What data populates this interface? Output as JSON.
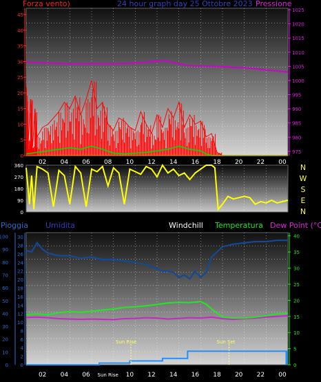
{
  "header": {
    "left_label": "Forza vento)",
    "title": "24 hour graph day 25 Ottobre 2023",
    "right_label": "Pressione"
  },
  "bottom_header": {
    "pioggia": "Pioggia",
    "umidita": "Umidita",
    "windchill": "Windchill",
    "temperatura": "Temperatura",
    "dewpoint": "Dew Point (°C)"
  },
  "events": {
    "sunrise": "Sun Rise",
    "sunset": "Sun Set"
  },
  "colors": {
    "wind": "#ff0000",
    "gust": "#00dd00",
    "pressure": "#d000d0",
    "direction": "#ffff00",
    "humidity": "#124a96",
    "temperature": "#22e822",
    "dewpoint": "#cc22cc",
    "rain": "#1e90ff",
    "sun_marker": "#ffff80",
    "text_blue": "#2a6fd0",
    "text_blue_dark": "#3040c0"
  },
  "chart_data": [
    {
      "type": "line",
      "name": "wind-pressure",
      "x_ticks": [
        "02",
        "04",
        "06",
        "08",
        "10",
        "12",
        "14",
        "16",
        "18",
        "20",
        "22",
        "00"
      ],
      "y_left_ticks": [
        "0",
        "5",
        "10",
        "15",
        "20",
        "25",
        "30",
        "35",
        "40",
        "45"
      ],
      "y_left_range": [
        0,
        47
      ],
      "y_right_ticks": [
        "975",
        "980",
        "985",
        "990",
        "995",
        "1000",
        "1005",
        "1010",
        "1015",
        "1020",
        "1025"
      ],
      "y_right_range": [
        973.5,
        1025.5
      ],
      "x_range": [
        0,
        24
      ],
      "grid": true,
      "series": [
        {
          "key": "pressure",
          "x": [
            0,
            2,
            4,
            6,
            8,
            10,
            12,
            12.5,
            13,
            13.5,
            14,
            15,
            16,
            17,
            18,
            19,
            20,
            21,
            22,
            23,
            24
          ],
          "y": [
            1006.5,
            1006.2,
            1005.9,
            1006,
            1005.9,
            1006.2,
            1006.8,
            1007,
            1006.8,
            1006.4,
            1005.9,
            1005.2,
            1005.1,
            1005,
            1004.9,
            1004.6,
            1004.5,
            1004.2,
            1003.7,
            1003.4,
            1003
          ]
        },
        {
          "key": "wind",
          "x": [
            0,
            0.2,
            0.4,
            0.6,
            0.8,
            1.0,
            1.5,
            2,
            2.5,
            3,
            3.5,
            4,
            4.5,
            5,
            5.5,
            6,
            6.5,
            7,
            7.5,
            8,
            8.5,
            9,
            9.5,
            10,
            10.5,
            11,
            11.5,
            12,
            12.5,
            13,
            13.5,
            14,
            14.5,
            15,
            15.5,
            16,
            16.5,
            17,
            17.5,
            18,
            24
          ],
          "y": [
            22,
            5,
            18,
            3,
            15,
            6,
            9,
            10,
            12,
            14,
            17,
            15,
            19,
            13,
            18,
            24,
            15,
            17,
            10,
            8,
            12,
            11,
            9,
            8,
            14,
            10,
            7,
            13,
            9,
            15,
            12,
            17,
            9,
            13,
            10,
            11,
            6,
            7,
            1,
            0,
            0
          ]
        },
        {
          "key": "gust",
          "x": [
            0,
            1,
            2,
            3,
            4,
            5,
            6,
            7,
            8,
            9,
            10,
            11,
            12,
            13,
            14,
            15,
            16,
            16.5,
            17,
            24
          ],
          "y": [
            0.5,
            1,
            1.5,
            2,
            2.5,
            2,
            3,
            2,
            0.8,
            0.5,
            0.8,
            1,
            1.5,
            2,
            3,
            2,
            1.5,
            0.5,
            0,
            0
          ]
        }
      ]
    },
    {
      "type": "line",
      "name": "wind-direction",
      "y_ticks": [
        "0",
        "90",
        "180",
        "270",
        "360"
      ],
      "y_range": [
        0,
        360
      ],
      "compass": [
        "N",
        "W",
        "S",
        "E",
        "N"
      ],
      "x_range": [
        0,
        24
      ],
      "series": [
        {
          "key": "direction",
          "x": [
            0,
            0.3,
            0.5,
            0.7,
            1,
            1.5,
            2,
            2.5,
            3,
            3.5,
            4,
            4.5,
            5,
            5.5,
            6,
            6.5,
            7,
            7.5,
            8,
            8.5,
            9,
            9.5,
            10,
            10.5,
            11,
            11.5,
            12,
            12.5,
            13,
            13.5,
            14,
            14.5,
            15,
            15.5,
            16,
            16.5,
            17,
            17.3,
            17.6,
            18,
            18.5,
            19,
            19.5,
            20,
            20.5,
            21,
            21.5,
            22,
            22.5,
            23,
            23.5,
            24
          ],
          "y": [
            340,
            60,
            280,
            20,
            350,
            330,
            300,
            40,
            320,
            280,
            60,
            350,
            300,
            40,
            330,
            310,
            350,
            200,
            340,
            300,
            60,
            330,
            310,
            290,
            350,
            330,
            270,
            360,
            300,
            330,
            280,
            300,
            250,
            300,
            330,
            360,
            360,
            340,
            20,
            60,
            120,
            100,
            110,
            120,
            110,
            60,
            80,
            70,
            90,
            70,
            80,
            90
          ]
        }
      ]
    },
    {
      "type": "line",
      "name": "humidity-temperature",
      "y_hum_ticks": [
        "0",
        "10",
        "20",
        "30",
        "40",
        "50",
        "60",
        "70",
        "80",
        "90",
        "100"
      ],
      "y_hum_range": [
        0,
        103
      ],
      "y_rain_ticks": [
        "0",
        "2",
        "4",
        "6",
        "8",
        "10",
        "12",
        "14",
        "16",
        "18",
        "20",
        "22",
        "24",
        "26",
        "28",
        "30"
      ],
      "y_temp_ticks": [
        "0",
        "5",
        "10",
        "15",
        "20",
        "25",
        "30",
        "35",
        "40"
      ],
      "y_temp_range": [
        0,
        41
      ],
      "x_range": [
        0,
        24
      ],
      "series": [
        {
          "key": "humidity",
          "x": [
            0,
            0.5,
            1,
            1.5,
            2,
            3,
            4,
            5,
            6,
            7,
            8,
            9,
            10,
            11,
            12,
            12.5,
            13,
            13.5,
            14,
            14.5,
            15,
            15.5,
            16,
            16.5,
            17,
            17.5,
            18,
            19,
            20,
            21,
            22,
            23,
            24
          ],
          "y": [
            89,
            88,
            95,
            90,
            87,
            85,
            85,
            83,
            84,
            82,
            82,
            81,
            80,
            78,
            75,
            73,
            73,
            72,
            68,
            70,
            67,
            73,
            68,
            72,
            84,
            88,
            92,
            94,
            95,
            96,
            96,
            97,
            97
          ]
        },
        {
          "key": "temperature",
          "x": [
            0,
            1,
            2,
            3,
            4,
            5,
            6,
            7,
            8,
            9,
            10,
            11,
            12,
            13,
            14,
            15,
            16,
            16.5,
            17,
            18,
            19,
            20,
            21,
            22,
            23,
            24
          ],
          "y": [
            15.5,
            15.8,
            15.5,
            16.2,
            16.5,
            16.3,
            16.6,
            17,
            17.3,
            17.8,
            18,
            18.3,
            18.7,
            19.2,
            19.4,
            19.3,
            19.6,
            18.8,
            17.3,
            14.8,
            14.5,
            14.5,
            14.8,
            15.2,
            15.8,
            16
          ]
        },
        {
          "key": "dewpoint",
          "x": [
            0,
            1,
            2,
            3,
            4,
            5,
            6,
            7,
            8,
            9,
            10,
            11,
            12,
            13,
            14,
            15,
            16,
            17,
            18,
            19,
            20,
            21,
            22,
            23,
            24
          ],
          "y": [
            14.7,
            14.8,
            14.6,
            14.3,
            14.2,
            14.1,
            14.2,
            14.1,
            14,
            14.3,
            14.4,
            14.6,
            14.5,
            14.2,
            14.4,
            14.6,
            14.5,
            14.8,
            14.3,
            14.1,
            14.3,
            14.5,
            14.8,
            15,
            15.2
          ]
        },
        {
          "key": "rain",
          "x": [
            0,
            6.7,
            6.7,
            9.5,
            9.5,
            12.5,
            12.5,
            14.8,
            14.8,
            24
          ],
          "y": [
            0,
            0,
            0.4,
            0.4,
            0.9,
            0.9,
            1.5,
            1.5,
            3.2,
            3.2
          ]
        }
      ],
      "sunrise_x": 9.6,
      "sunset_x": 18.6
    }
  ]
}
